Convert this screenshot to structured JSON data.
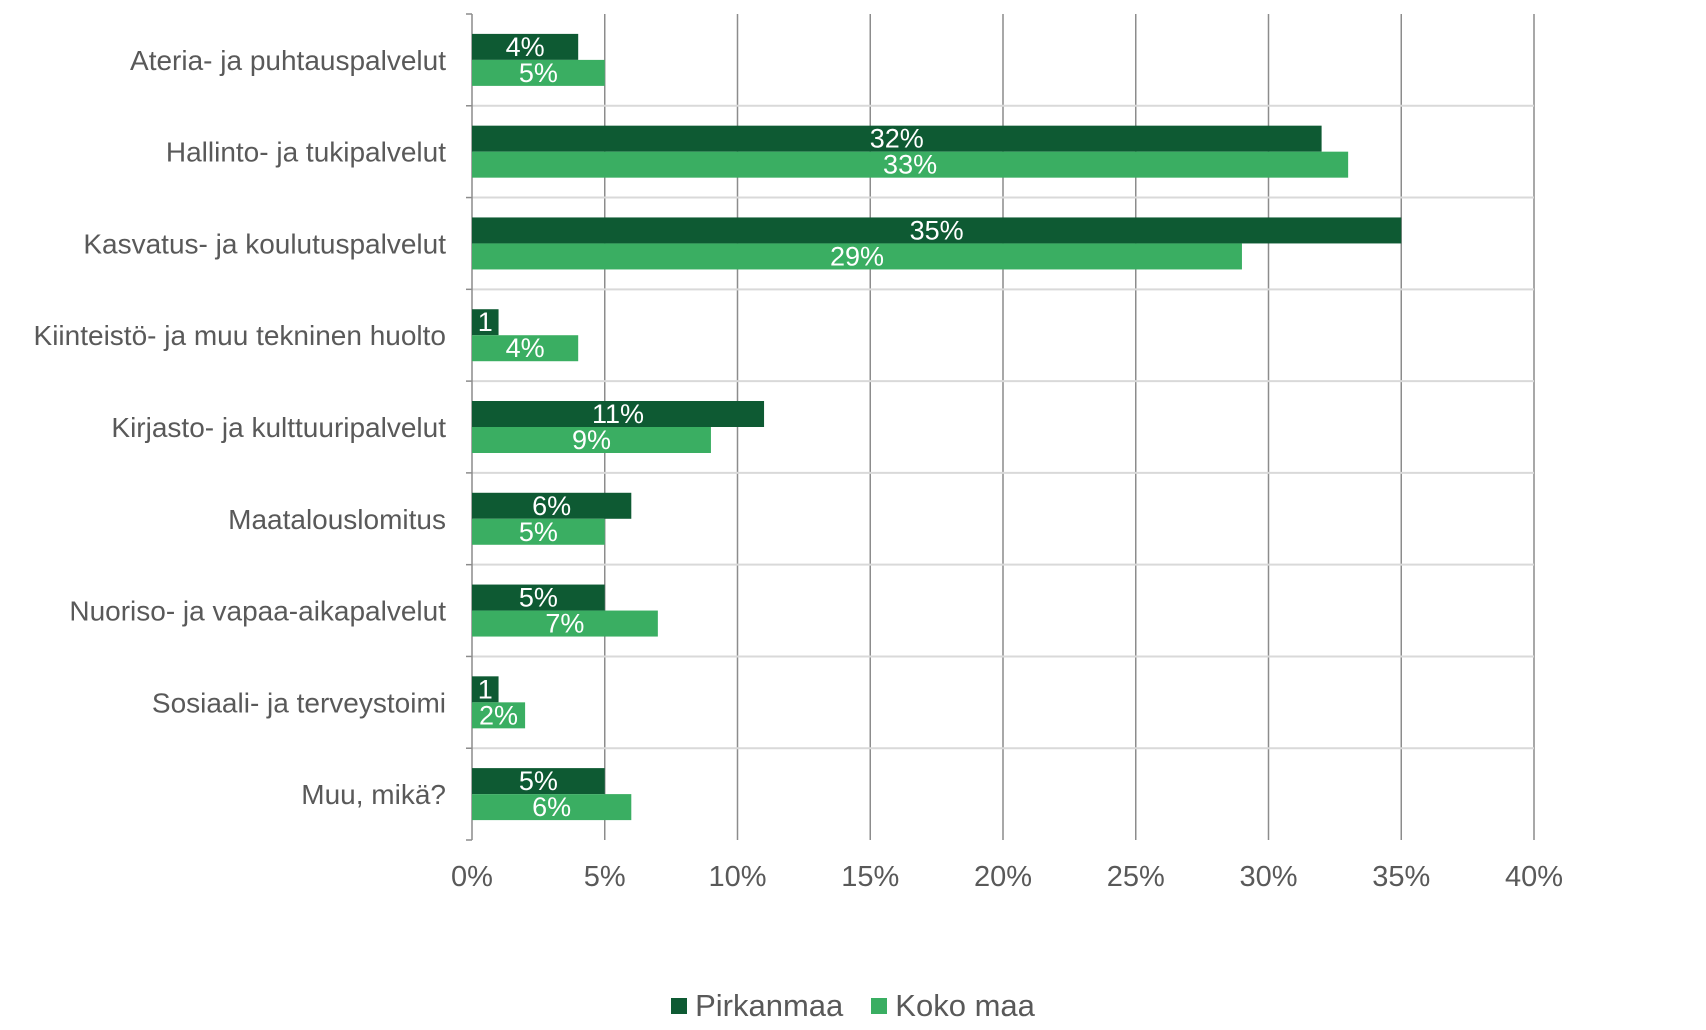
{
  "chart_data": {
    "type": "bar",
    "orientation": "horizontal",
    "categories": [
      "Ateria- ja puhtauspalvelut",
      "Hallinto- ja tukipalvelut",
      "Kasvatus- ja koulutuspalvelut",
      "Kiinteistö- ja muu tekninen huolto",
      "Kirjasto- ja kulttuuripalvelut",
      "Maatalouslomitus",
      "Nuoriso- ja vapaa-aikapalvelut",
      "Sosiaali- ja terveystoimi",
      "Muu, mikä?"
    ],
    "series": [
      {
        "name": "Pirkanmaa",
        "color": "#0e5a33",
        "values": [
          4,
          32,
          35,
          1,
          11,
          6,
          5,
          1,
          5
        ],
        "labels": [
          "4%",
          "32%",
          "35%",
          "1",
          "11%",
          "6%",
          "5%",
          "1",
          "5%"
        ]
      },
      {
        "name": "Koko maa",
        "color": "#3aae62",
        "values": [
          5,
          33,
          29,
          4,
          9,
          5,
          7,
          2,
          6
        ],
        "labels": [
          "5%",
          "33%",
          "29%",
          "4%",
          "9%",
          "5%",
          "7%",
          "2%",
          "6%"
        ]
      }
    ],
    "xlim": [
      0,
      40
    ],
    "xticks": [
      "0%",
      "5%",
      "10%",
      "15%",
      "20%",
      "25%",
      "30%",
      "35%",
      "40%"
    ],
    "grid": true,
    "legend_position": "bottom",
    "title": "",
    "xlabel": "",
    "ylabel": ""
  }
}
